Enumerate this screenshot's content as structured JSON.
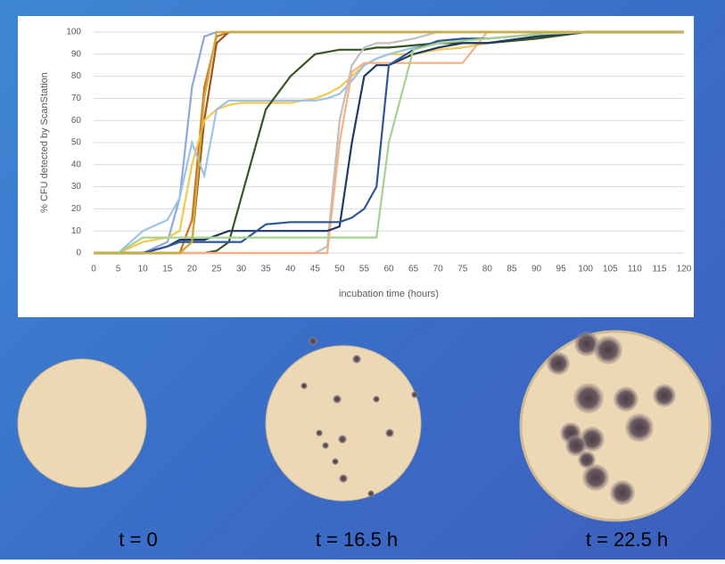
{
  "chart_data": {
    "type": "line",
    "x_label": "incubation time (hours)",
    "y_label": "% CFU detected by ScanStation",
    "x": [
      0,
      5,
      10,
      15,
      17.5,
      20,
      22.5,
      25,
      27.5,
      30,
      35,
      40,
      45,
      47.5,
      50,
      52.5,
      55,
      57.5,
      60,
      65,
      70,
      75,
      80,
      90,
      100,
      110,
      120
    ],
    "series": [
      {
        "color": "#8fa8d8",
        "values": [
          0,
          0,
          0,
          5,
          25,
          75,
          98,
          100,
          100,
          100,
          100,
          100,
          100,
          100,
          100,
          100,
          100,
          100,
          100,
          100,
          100,
          100,
          100,
          100,
          100,
          100,
          100
        ]
      },
      {
        "color": "#d4701c",
        "values": [
          0,
          0,
          0,
          0,
          0,
          15,
          75,
          98,
          100,
          100,
          100,
          100,
          100,
          100,
          100,
          100,
          100,
          100,
          100,
          100,
          100,
          100,
          100,
          100,
          100,
          100,
          100
        ]
      },
      {
        "color": "#a0521e",
        "values": [
          0,
          0,
          0,
          0,
          0,
          5,
          60,
          95,
          100,
          100,
          100,
          100,
          100,
          100,
          100,
          100,
          100,
          100,
          100,
          100,
          100,
          100,
          100,
          100,
          100,
          100,
          100
        ]
      },
      {
        "color": "#f2c94c",
        "values": [
          0,
          0,
          5,
          7,
          10,
          40,
          60,
          65,
          67,
          68,
          68,
          68,
          70,
          72,
          75,
          80,
          85,
          88,
          90,
          90,
          92,
          93,
          95,
          97,
          100,
          100,
          100
        ]
      },
      {
        "color": "#9dc3e6",
        "values": [
          0,
          0,
          10,
          15,
          25,
          50,
          35,
          65,
          69,
          69,
          69,
          69,
          69,
          70,
          72,
          78,
          85,
          88,
          90,
          93,
          95,
          95,
          95,
          98,
          100,
          100,
          100
        ]
      },
      {
        "color": "#375623",
        "values": [
          0,
          0,
          0,
          0,
          0,
          0,
          0,
          1,
          5,
          25,
          65,
          80,
          90,
          91,
          92,
          92,
          92,
          93,
          93,
          94,
          95,
          95,
          95,
          97,
          100,
          100,
          100
        ]
      },
      {
        "color": "#bfbfbf",
        "values": [
          0,
          0,
          0,
          0,
          0,
          0,
          0,
          0,
          0,
          0,
          0,
          0,
          0,
          3,
          60,
          85,
          93,
          95,
          95,
          97,
          100,
          100,
          100,
          100,
          100,
          100,
          100
        ]
      },
      {
        "color": "#f4b183",
        "values": [
          0,
          0,
          0,
          0,
          0,
          0,
          0,
          0,
          0,
          0,
          0,
          0,
          0,
          0,
          50,
          82,
          86,
          86,
          86,
          86,
          86,
          86,
          100,
          100,
          100,
          100,
          100
        ]
      },
      {
        "color": "#203864",
        "values": [
          0,
          0,
          0,
          3,
          6,
          6,
          6,
          8,
          10,
          10,
          10,
          10,
          10,
          10,
          12,
          50,
          80,
          85,
          85,
          90,
          93,
          95,
          95,
          98,
          100,
          100,
          100
        ]
      },
      {
        "color": "#2e5597",
        "values": [
          0,
          0,
          0,
          3,
          5,
          5,
          5,
          5,
          5,
          5,
          13,
          14,
          14,
          14,
          14,
          16,
          20,
          30,
          85,
          92,
          96,
          97,
          97,
          99,
          100,
          100,
          100
        ]
      },
      {
        "color": "#a9d18e",
        "values": [
          0,
          0,
          7,
          7,
          7,
          7,
          7,
          7,
          7,
          7,
          7,
          7,
          7,
          7,
          7,
          7,
          7,
          7,
          50,
          92,
          95,
          96,
          97,
          99,
          100,
          100,
          100
        ]
      },
      {
        "color": "#c9b03e",
        "values": [
          0,
          0,
          0,
          0,
          0,
          5,
          70,
          100,
          100,
          100,
          100,
          100,
          100,
          100,
          100,
          100,
          100,
          100,
          100,
          100,
          100,
          100,
          100,
          100,
          100,
          100,
          100
        ]
      }
    ],
    "xlim": [
      0,
      120
    ],
    "xticks": [
      0,
      5,
      10,
      15,
      20,
      25,
      30,
      35,
      40,
      45,
      50,
      55,
      60,
      65,
      70,
      75,
      80,
      85,
      90,
      95,
      100,
      105,
      110,
      115,
      120
    ],
    "ylim": [
      0,
      100
    ],
    "yticks": [
      0,
      10,
      20,
      30,
      40,
      50,
      60,
      70,
      80,
      90,
      100
    ],
    "grid": true
  },
  "captions": [
    "t = 0",
    "t = 16.5 h",
    "t = 22.5 h"
  ]
}
